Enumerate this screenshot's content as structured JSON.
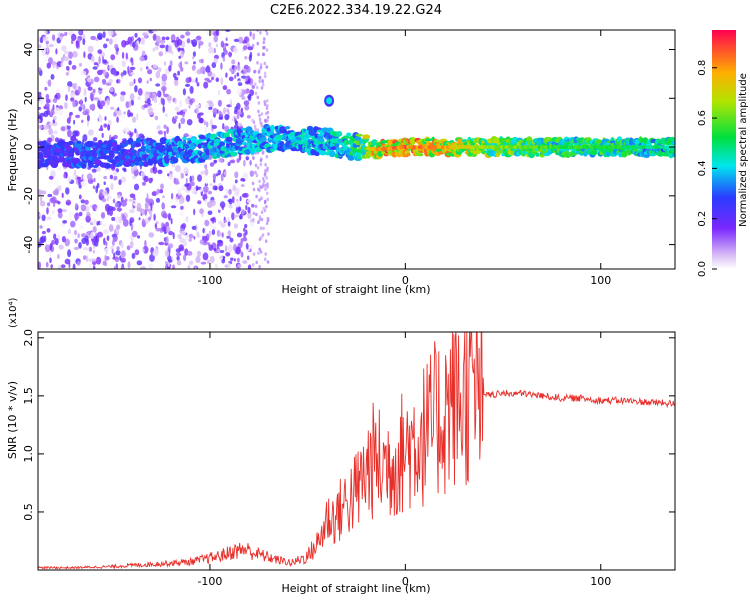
{
  "figure": {
    "title": "C2E6.2022.334.19.22.G24"
  },
  "chart_data": [
    {
      "type": "heatmap",
      "title": "C2E6.2022.334.19.22.G24",
      "xlabel": "Height of straight line (km)",
      "ylabel": "Frequency (Hz)",
      "xlim": [
        -188,
        138
      ],
      "ylim": [
        -50,
        48
      ],
      "xticks": [
        -100,
        0,
        100
      ],
      "yticks": [
        -40,
        -20,
        0,
        20,
        40
      ],
      "colorbar": {
        "label": "Normalized spectral amplitude",
        "range": [
          0.0,
          0.95
        ],
        "ticks": [
          0.0,
          0.2,
          0.4,
          0.6,
          0.8
        ],
        "colormap": "rainbow-white-low"
      },
      "ridge": [
        {
          "x": -180,
          "f": -3,
          "amp": 0.3
        },
        {
          "x": -165,
          "f": -3,
          "amp": 0.35
        },
        {
          "x": -150,
          "f": -3,
          "amp": 0.3
        },
        {
          "x": -135,
          "f": -2,
          "amp": 0.35
        },
        {
          "x": -120,
          "f": -2,
          "amp": 0.4
        },
        {
          "x": -100,
          "f": 0,
          "amp": 0.45
        },
        {
          "x": -80,
          "f": 3,
          "amp": 0.45
        },
        {
          "x": -60,
          "f": 4,
          "amp": 0.45
        },
        {
          "x": -40,
          "f": 2,
          "amp": 0.45
        },
        {
          "x": -25,
          "f": 0,
          "amp": 0.55
        },
        {
          "x": -15,
          "f": -1,
          "amp": 0.85
        },
        {
          "x": 0,
          "f": 0,
          "amp": 0.9
        },
        {
          "x": 20,
          "f": 0,
          "amp": 0.85
        },
        {
          "x": 40,
          "f": 0,
          "amp": 0.7
        },
        {
          "x": 60,
          "f": 0,
          "amp": 0.65
        },
        {
          "x": 80,
          "f": 0,
          "amp": 0.6
        },
        {
          "x": 100,
          "f": 0,
          "amp": 0.6
        },
        {
          "x": 120,
          "f": 0,
          "amp": 0.55
        },
        {
          "x": 138,
          "f": 0,
          "amp": 0.5
        }
      ]
    },
    {
      "type": "line",
      "xlabel": "Height of straight line (km)",
      "ylabel": "SNR (10 * v/v)",
      "y_multiplier_label": "(x10⁴)",
      "xlim": [
        -188,
        138
      ],
      "ylim": [
        0,
        2.05
      ],
      "xticks": [
        -100,
        0,
        100
      ],
      "yticks": [
        0.5,
        1.0,
        1.5,
        2.0
      ],
      "ytick_labels": [
        "0.5",
        "1.0",
        "1.5",
        "2.0"
      ],
      "series": [
        {
          "color": "#e8302b",
          "x": [
            -188,
            -170,
            -150,
            -130,
            -110,
            -95,
            -88,
            -82,
            -78,
            -72,
            -66,
            -58,
            -50,
            -44,
            -40,
            -36,
            -32,
            -28,
            -24,
            -20,
            -16,
            -12,
            -8,
            -4,
            0,
            4,
            8,
            12,
            16,
            20,
            24,
            28,
            32,
            36,
            40,
            50,
            60,
            70,
            80,
            90,
            100,
            110,
            120,
            130,
            138
          ],
          "values": [
            0.02,
            0.02,
            0.03,
            0.05,
            0.07,
            0.12,
            0.16,
            0.18,
            0.15,
            0.12,
            0.09,
            0.06,
            0.12,
            0.25,
            0.45,
            0.45,
            0.55,
            0.62,
            0.7,
            0.85,
            0.95,
            0.9,
            0.92,
            0.95,
            1.05,
            1.1,
            1.15,
            1.2,
            1.3,
            1.35,
            1.5,
            1.45,
            1.55,
            1.55,
            1.5,
            1.52,
            1.52,
            1.5,
            1.48,
            1.48,
            1.46,
            1.46,
            1.45,
            1.44,
            1.43
          ]
        }
      ]
    }
  ]
}
